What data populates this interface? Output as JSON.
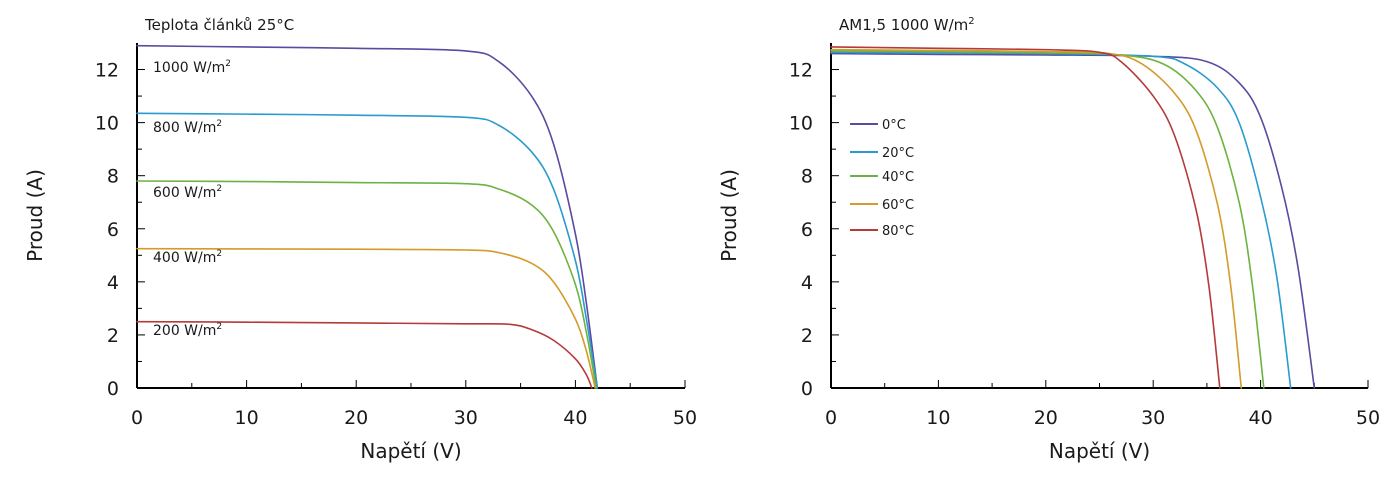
{
  "chart_data": [
    {
      "type": "line",
      "title": "Teplota článků 25°C",
      "xlabel": "Napětí (V)",
      "ylabel": "Proud (A)",
      "xlim": [
        0,
        50
      ],
      "ylim": [
        0,
        13
      ],
      "xticks": [
        "0",
        "10",
        "20",
        "30",
        "40",
        "50"
      ],
      "yticks": [
        "0",
        "2",
        "4",
        "6",
        "8",
        "10",
        "12"
      ],
      "grid": false,
      "series": [
        {
          "name": "1000 W/m",
          "name_sup": "2",
          "color": "#5a4aa0",
          "isc": 12.9,
          "voc": 42.0,
          "knee_v": 31,
          "knee_i": 12.7,
          "x": [
            0,
            10,
            20,
            30,
            33,
            36,
            38,
            40,
            41,
            42
          ],
          "y": [
            12.9,
            12.85,
            12.8,
            12.7,
            12.3,
            11.0,
            9.2,
            5.8,
            3.2,
            0
          ]
        },
        {
          "name": "800 W/m",
          "name_sup": "2",
          "color": "#2a9bcf",
          "isc": 10.35,
          "voc": 42.0,
          "knee_v": 30,
          "knee_i": 10.2,
          "x": [
            0,
            10,
            20,
            30,
            33,
            36,
            38,
            40,
            41,
            42
          ],
          "y": [
            10.35,
            10.32,
            10.28,
            10.2,
            9.9,
            8.9,
            7.5,
            4.8,
            2.6,
            0
          ]
        },
        {
          "name": "600 W/m",
          "name_sup": "2",
          "color": "#6cb33f",
          "isc": 7.8,
          "voc": 41.9,
          "knee_v": 31,
          "knee_i": 7.7,
          "x": [
            0,
            10,
            20,
            30,
            33,
            36,
            38,
            40,
            41,
            41.9
          ],
          "y": [
            7.8,
            7.78,
            7.74,
            7.7,
            7.5,
            6.9,
            5.9,
            3.9,
            2.1,
            0
          ]
        },
        {
          "name": "400 W/m",
          "name_sup": "2",
          "color": "#d49a2a",
          "isc": 5.25,
          "voc": 41.8,
          "knee_v": 32,
          "knee_i": 5.2,
          "x": [
            0,
            10,
            20,
            30,
            33,
            36,
            38,
            40,
            41,
            41.8
          ],
          "y": [
            5.25,
            5.24,
            5.23,
            5.2,
            5.1,
            4.7,
            4.0,
            2.6,
            1.4,
            0
          ]
        },
        {
          "name": "200 W/m",
          "name_sup": "2",
          "color": "#b53a3a",
          "isc": 2.5,
          "voc": 41.5,
          "knee_v": 34,
          "knee_i": 2.4,
          "x": [
            0,
            10,
            20,
            30,
            34,
            36,
            38,
            40,
            41,
            41.5
          ],
          "y": [
            2.5,
            2.48,
            2.45,
            2.42,
            2.4,
            2.2,
            1.8,
            1.1,
            0.5,
            0
          ]
        }
      ]
    },
    {
      "type": "line",
      "title": "AM1,5 1000 W/m",
      "title_sup": "2",
      "xlabel": "Napětí (V)",
      "ylabel": "Proud (A)",
      "xlim": [
        0,
        50
      ],
      "ylim": [
        0,
        13
      ],
      "xticks": [
        "0",
        "10",
        "20",
        "30",
        "40",
        "50"
      ],
      "yticks": [
        "0",
        "2",
        "4",
        "6",
        "8",
        "10",
        "12"
      ],
      "grid": false,
      "legend_position": "center-left",
      "series": [
        {
          "name": "0°C",
          "color": "#5a4aa0",
          "x": [
            0,
            10,
            20,
            30,
            35,
            38,
            40,
            42,
            43.5,
            45
          ],
          "y": [
            12.6,
            12.57,
            12.55,
            12.5,
            12.3,
            11.5,
            10.2,
            7.5,
            4.5,
            0
          ]
        },
        {
          "name": "20°C",
          "color": "#2a9bcf",
          "x": [
            0,
            10,
            20,
            30,
            33,
            36,
            38,
            40,
            41.5,
            42.8
          ],
          "y": [
            12.65,
            12.62,
            12.6,
            12.5,
            12.2,
            11.3,
            10.0,
            7.2,
            4.2,
            0
          ]
        },
        {
          "name": "40°C",
          "color": "#6cb33f",
          "x": [
            0,
            10,
            20,
            27,
            31,
            34,
            36,
            38,
            39.2,
            40.3
          ],
          "y": [
            12.7,
            12.67,
            12.63,
            12.55,
            12.2,
            11.2,
            9.8,
            7.0,
            4.0,
            0
          ]
        },
        {
          "name": "60°C",
          "color": "#d49a2a",
          "x": [
            0,
            10,
            20,
            26,
            29,
            32,
            34,
            36,
            37.2,
            38.2
          ],
          "y": [
            12.75,
            12.72,
            12.68,
            12.6,
            12.2,
            11.1,
            9.7,
            6.9,
            3.9,
            0
          ]
        },
        {
          "name": "80°C",
          "color": "#b53a3a",
          "x": [
            0,
            10,
            20,
            25,
            27,
            30,
            32,
            34,
            35.2,
            36.2
          ],
          "y": [
            12.85,
            12.8,
            12.75,
            12.65,
            12.3,
            11.0,
            9.5,
            6.7,
            3.8,
            0
          ]
        }
      ]
    }
  ]
}
